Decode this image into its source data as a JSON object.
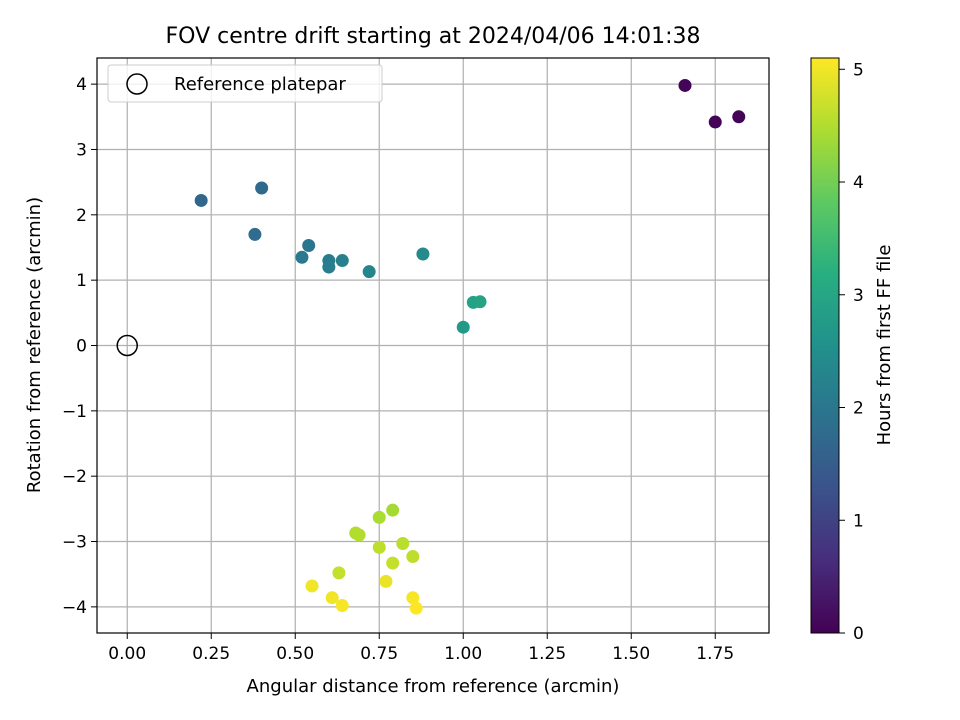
{
  "chart_data": {
    "type": "scatter",
    "title": "FOV centre drift starting at 2024/04/06 14:01:38",
    "xlabel": "Angular distance from reference (arcmin)",
    "ylabel": "Rotation from reference (arcmin)",
    "xlim": [
      -0.09,
      1.91
    ],
    "ylim": [
      -4.4,
      4.4
    ],
    "xticks": [
      0.0,
      0.25,
      0.5,
      0.75,
      1.0,
      1.25,
      1.5,
      1.75
    ],
    "xtick_labels": [
      "0.00",
      "0.25",
      "0.50",
      "0.75",
      "1.00",
      "1.25",
      "1.50",
      "1.75"
    ],
    "yticks": [
      4,
      3,
      2,
      1,
      0,
      -1,
      -2,
      -3,
      -4
    ],
    "ytick_labels": [
      "4",
      "3",
      "2",
      "1",
      "0",
      "−1",
      "−2",
      "−3",
      "−4"
    ],
    "grid": true,
    "legend": {
      "placement": "top-left",
      "entries": [
        "Reference platepar"
      ]
    },
    "reference_point": {
      "x": 0.0,
      "y": 0.0
    },
    "colorbar": {
      "label": "Hours from first FF file",
      "colormap": "viridis",
      "range": [
        0,
        5.1
      ],
      "ticks": [
        0,
        1,
        2,
        3,
        4,
        5
      ],
      "tick_labels": [
        "0",
        "1",
        "2",
        "3",
        "4",
        "5"
      ]
    },
    "series": [
      {
        "points": [
          {
            "x": 1.66,
            "y": 3.98,
            "c": 0.05
          },
          {
            "x": 1.75,
            "y": 3.42,
            "c": 0.05
          },
          {
            "x": 1.82,
            "y": 3.5,
            "c": 0.05
          },
          {
            "x": 0.22,
            "y": 2.22,
            "c": 1.7
          },
          {
            "x": 0.4,
            "y": 2.41,
            "c": 1.75
          },
          {
            "x": 0.38,
            "y": 1.7,
            "c": 1.8
          },
          {
            "x": 0.54,
            "y": 1.53,
            "c": 2.0
          },
          {
            "x": 0.52,
            "y": 1.35,
            "c": 2.05
          },
          {
            "x": 0.6,
            "y": 1.3,
            "c": 2.1
          },
          {
            "x": 0.6,
            "y": 1.2,
            "c": 2.15
          },
          {
            "x": 0.64,
            "y": 1.3,
            "c": 2.2
          },
          {
            "x": 0.72,
            "y": 1.13,
            "c": 2.3
          },
          {
            "x": 0.88,
            "y": 1.4,
            "c": 2.4
          },
          {
            "x": 1.0,
            "y": 0.28,
            "c": 2.75
          },
          {
            "x": 1.03,
            "y": 0.66,
            "c": 2.9
          },
          {
            "x": 1.05,
            "y": 0.67,
            "c": 2.95
          },
          {
            "x": 0.79,
            "y": -2.52,
            "c": 4.4
          },
          {
            "x": 0.75,
            "y": -2.63,
            "c": 4.45
          },
          {
            "x": 0.68,
            "y": -2.87,
            "c": 4.5
          },
          {
            "x": 0.69,
            "y": -2.9,
            "c": 4.5
          },
          {
            "x": 0.82,
            "y": -3.03,
            "c": 4.55
          },
          {
            "x": 0.75,
            "y": -3.09,
            "c": 4.6
          },
          {
            "x": 0.85,
            "y": -3.23,
            "c": 4.6
          },
          {
            "x": 0.79,
            "y": -3.33,
            "c": 4.65
          },
          {
            "x": 0.63,
            "y": -3.48,
            "c": 4.65
          },
          {
            "x": 0.77,
            "y": -3.61,
            "c": 4.95
          },
          {
            "x": 0.55,
            "y": -3.68,
            "c": 5.0
          },
          {
            "x": 0.61,
            "y": -3.86,
            "c": 5.0
          },
          {
            "x": 0.85,
            "y": -3.86,
            "c": 5.05
          },
          {
            "x": 0.64,
            "y": -3.98,
            "c": 5.05
          },
          {
            "x": 0.86,
            "y": -4.02,
            "c": 5.1
          }
        ]
      }
    ]
  }
}
